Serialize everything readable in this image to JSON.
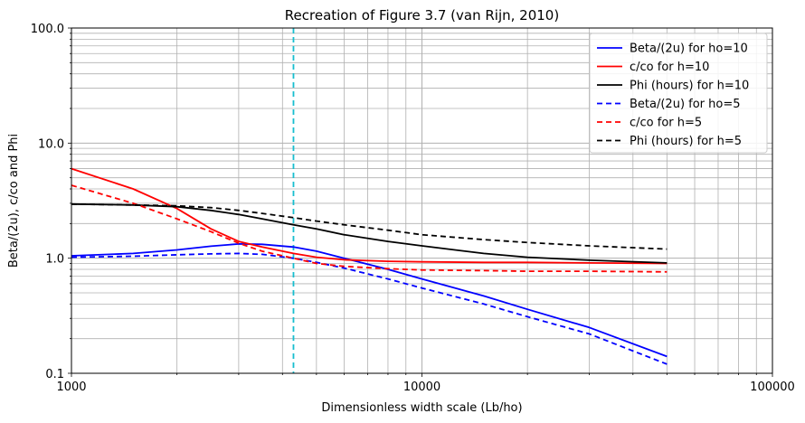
{
  "chart_data": {
    "type": "line",
    "title": "Recreation of Figure 3.7 (van Rijn, 2010)",
    "xlabel": "Dimensionless width scale (Lb/ho)",
    "ylabel": "Beta/(2u), c/co and Phi",
    "xscale": "log",
    "yscale": "log",
    "xlim": [
      1000,
      100000
    ],
    "ylim": [
      0.1,
      100
    ],
    "x_ticks": [
      {
        "value": 1000,
        "label": "1000"
      },
      {
        "value": 10000,
        "label": "10000"
      },
      {
        "value": 100000,
        "label": "100000"
      }
    ],
    "y_ticks": [
      {
        "value": 0.1,
        "label": "0.1"
      },
      {
        "value": 1,
        "label": "1.0"
      },
      {
        "value": 10,
        "label": "10.0"
      },
      {
        "value": 100,
        "label": "100.0"
      }
    ],
    "grid": "major and minor",
    "legend_position": "top-right",
    "vline": {
      "x": 4300,
      "color": "#17becf",
      "style": "dashed"
    },
    "series": [
      {
        "name": "Beta/(2u) for ho=10",
        "color": "#0000ff",
        "style": "solid",
        "x": [
          1000,
          1500,
          2000,
          2500,
          3000,
          3500,
          4300,
          5000,
          6000,
          8000,
          10000,
          15000,
          20000,
          30000,
          50000
        ],
        "y": [
          1.05,
          1.1,
          1.18,
          1.27,
          1.33,
          1.32,
          1.25,
          1.15,
          1.0,
          0.8,
          0.66,
          0.47,
          0.36,
          0.25,
          0.14
        ]
      },
      {
        "name": "c/co for h=10",
        "color": "#ff0000",
        "style": "solid",
        "x": [
          1000,
          1500,
          2000,
          2500,
          3000,
          3500,
          4300,
          5000,
          6000,
          8000,
          10000,
          15000,
          20000,
          30000,
          50000
        ],
        "y": [
          6.0,
          4.0,
          2.7,
          1.8,
          1.4,
          1.25,
          1.1,
          1.02,
          0.97,
          0.94,
          0.93,
          0.92,
          0.92,
          0.91,
          0.9
        ]
      },
      {
        "name": "Phi (hours) for h=10",
        "color": "#000000",
        "style": "solid",
        "x": [
          1000,
          1500,
          2000,
          2500,
          3000,
          3500,
          4300,
          5000,
          6000,
          8000,
          10000,
          15000,
          20000,
          30000,
          50000
        ],
        "y": [
          2.95,
          2.9,
          2.8,
          2.6,
          2.4,
          2.2,
          1.95,
          1.8,
          1.6,
          1.4,
          1.28,
          1.1,
          1.02,
          0.96,
          0.91
        ]
      },
      {
        "name": "Beta/(2u) for ho=5",
        "color": "#0000ff",
        "style": "dashed",
        "x": [
          1000,
          1500,
          2000,
          2500,
          3000,
          3500,
          4300,
          5000,
          6000,
          8000,
          10000,
          15000,
          20000,
          30000,
          50000
        ],
        "y": [
          1.02,
          1.04,
          1.07,
          1.09,
          1.1,
          1.08,
          1.0,
          0.92,
          0.82,
          0.66,
          0.55,
          0.4,
          0.31,
          0.22,
          0.12
        ]
      },
      {
        "name": "c/co for h=5",
        "color": "#ff0000",
        "style": "dashed",
        "x": [
          1000,
          1500,
          2000,
          2500,
          3000,
          3500,
          4300,
          5000,
          6000,
          8000,
          10000,
          15000,
          20000,
          30000,
          50000
        ],
        "y": [
          4.3,
          3.0,
          2.2,
          1.7,
          1.35,
          1.15,
          1.0,
          0.9,
          0.85,
          0.81,
          0.79,
          0.78,
          0.77,
          0.77,
          0.76
        ]
      },
      {
        "name": "Phi (hours) for h=5",
        "color": "#000000",
        "style": "dashed",
        "x": [
          1000,
          1500,
          2000,
          2500,
          3000,
          3500,
          4300,
          5000,
          6000,
          8000,
          10000,
          15000,
          20000,
          30000,
          50000
        ],
        "y": [
          2.95,
          2.9,
          2.85,
          2.75,
          2.6,
          2.45,
          2.25,
          2.1,
          1.95,
          1.75,
          1.6,
          1.45,
          1.37,
          1.28,
          1.2
        ]
      }
    ]
  }
}
